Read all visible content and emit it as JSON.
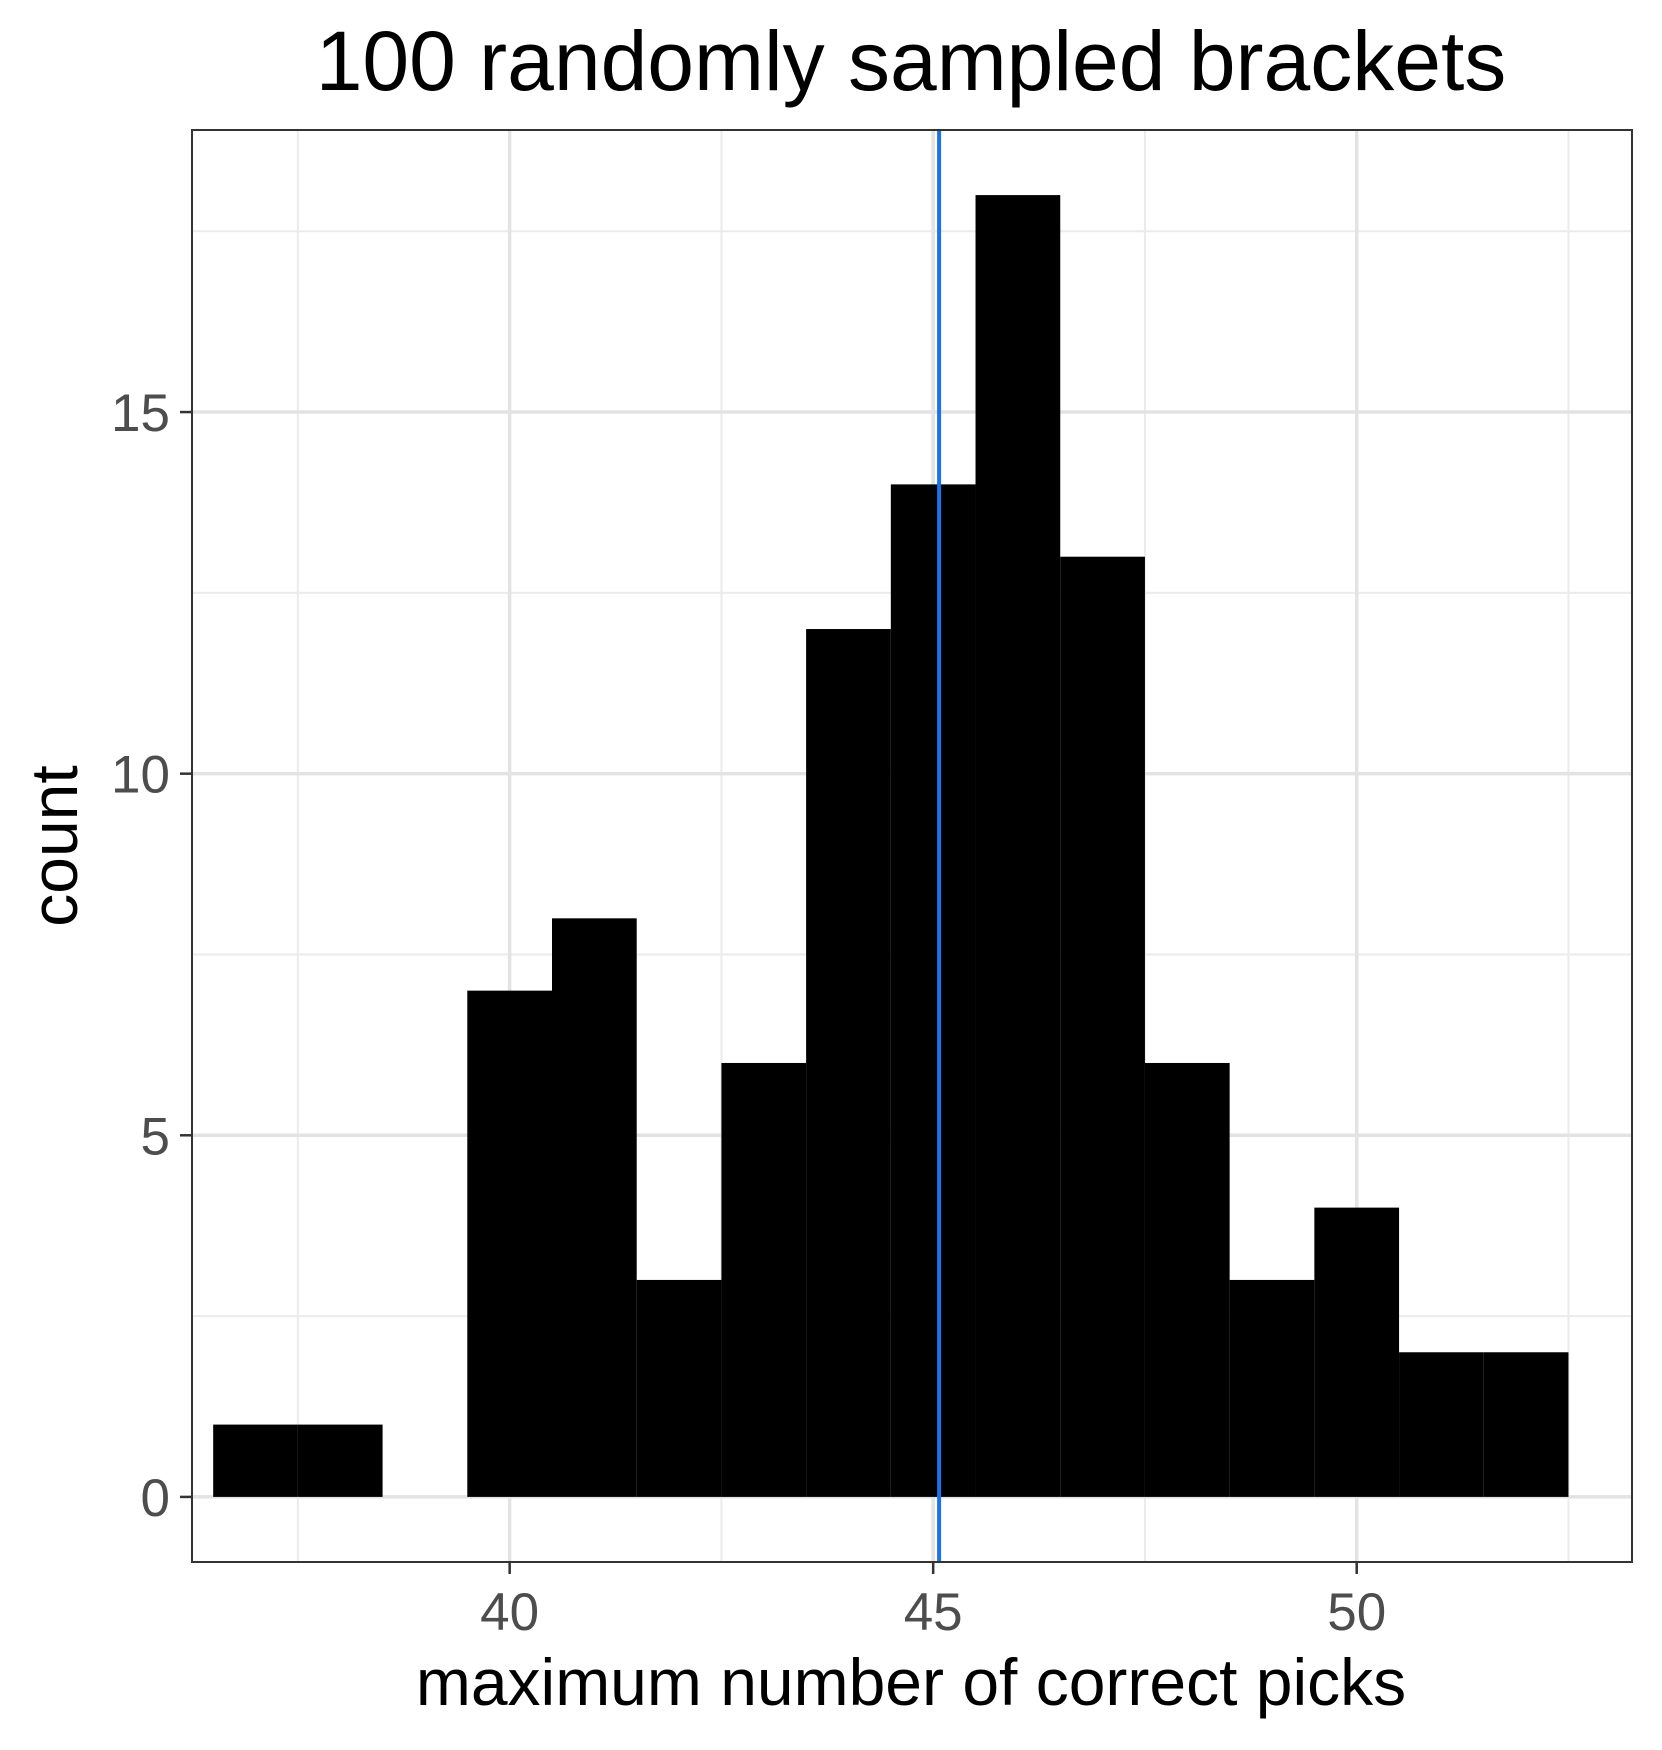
{
  "chart_data": {
    "type": "bar",
    "title": "100 randomly sampled brackets",
    "xlabel": "maximum number of correct picks",
    "ylabel": "count",
    "x": [
      37,
      38,
      40,
      41,
      42,
      43,
      44,
      45,
      46,
      47,
      48,
      49,
      50,
      51,
      52
    ],
    "values": [
      1,
      1,
      7,
      8,
      3,
      6,
      12,
      14,
      18,
      13,
      6,
      3,
      4,
      2,
      2
    ],
    "xlim": [
      36.25,
      53.25
    ],
    "ylim": [
      -0.9,
      18.9
    ],
    "x_ticks": [
      40,
      45,
      50
    ],
    "x_tick_labels": [
      "40",
      "45",
      "50"
    ],
    "y_ticks": [
      0,
      5,
      10,
      15
    ],
    "y_tick_labels": [
      "0",
      "5",
      "10",
      "15"
    ],
    "reference_line": {
      "x": 45.07,
      "color": "#1a73e8"
    },
    "bar_color": "#000000",
    "grid": true,
    "legend": "none"
  }
}
